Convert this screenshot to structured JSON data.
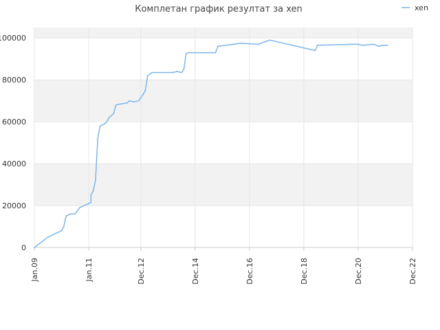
{
  "chart_data": {
    "type": "line",
    "title": "Комплетан график резултат за xen",
    "xlabel": "",
    "ylabel": "",
    "x_ticks": [
      "Jan.09",
      "Jan.11",
      "Dec.12",
      "Dec.14",
      "Dec.16",
      "Dec.18",
      "Dec.20",
      "Dec.22"
    ],
    "y_ticks": [
      "0",
      "20000",
      "40000",
      "60000",
      "80000",
      "100000"
    ],
    "ylim": [
      0,
      105000
    ],
    "xlim": [
      "2009-01",
      "2022-12"
    ],
    "grid": true,
    "legend_position": "top-right",
    "colors": {
      "line": "#7cb5ec",
      "band": "#f2f2f2",
      "grid": "#e6e6e6"
    },
    "series": [
      {
        "name": "xen",
        "points": [
          [
            "2009-01",
            0
          ],
          [
            "2009-07",
            5000
          ],
          [
            "2009-11",
            7000
          ],
          [
            "2010-01",
            8000
          ],
          [
            "2010-02",
            10000
          ],
          [
            "2010-03",
            15000
          ],
          [
            "2010-05",
            16000
          ],
          [
            "2010-07",
            16000
          ],
          [
            "2010-09",
            19000
          ],
          [
            "2011-01",
            21000
          ],
          [
            "2011-02",
            21500
          ],
          [
            "2011-02",
            25000
          ],
          [
            "2011-03",
            27000
          ],
          [
            "2011-04",
            32000
          ],
          [
            "2011-05",
            52000
          ],
          [
            "2011-06",
            58000
          ],
          [
            "2011-08",
            59000
          ],
          [
            "2011-09",
            60000
          ],
          [
            "2011-10",
            62000
          ],
          [
            "2011-12",
            64000
          ],
          [
            "2012-01",
            68000
          ],
          [
            "2012-03",
            68500
          ],
          [
            "2012-06",
            69000
          ],
          [
            "2012-07",
            70000
          ],
          [
            "2012-09",
            69500
          ],
          [
            "2012-11",
            70000
          ],
          [
            "2013-01",
            73000
          ],
          [
            "2013-02",
            75000
          ],
          [
            "2013-03",
            82000
          ],
          [
            "2013-05",
            83500
          ],
          [
            "2014-02",
            83500
          ],
          [
            "2014-04",
            84000
          ],
          [
            "2014-06",
            83500
          ],
          [
            "2014-07",
            85000
          ],
          [
            "2014-08",
            92500
          ],
          [
            "2014-09",
            93000
          ],
          [
            "2015-09",
            93000
          ],
          [
            "2015-10",
            96000
          ],
          [
            "2016-05",
            97000
          ],
          [
            "2016-08",
            97500
          ],
          [
            "2017-04",
            97000
          ],
          [
            "2017-05",
            97500
          ],
          [
            "2017-09",
            99000
          ],
          [
            "2019-05",
            94000
          ],
          [
            "2019-06",
            96500
          ],
          [
            "2020-09",
            97000
          ],
          [
            "2020-12",
            97000
          ],
          [
            "2021-02",
            96500
          ],
          [
            "2021-07",
            97000
          ],
          [
            "2021-09",
            96000
          ],
          [
            "2021-11",
            96500
          ],
          [
            "2022-01",
            96500
          ]
        ]
      }
    ]
  }
}
